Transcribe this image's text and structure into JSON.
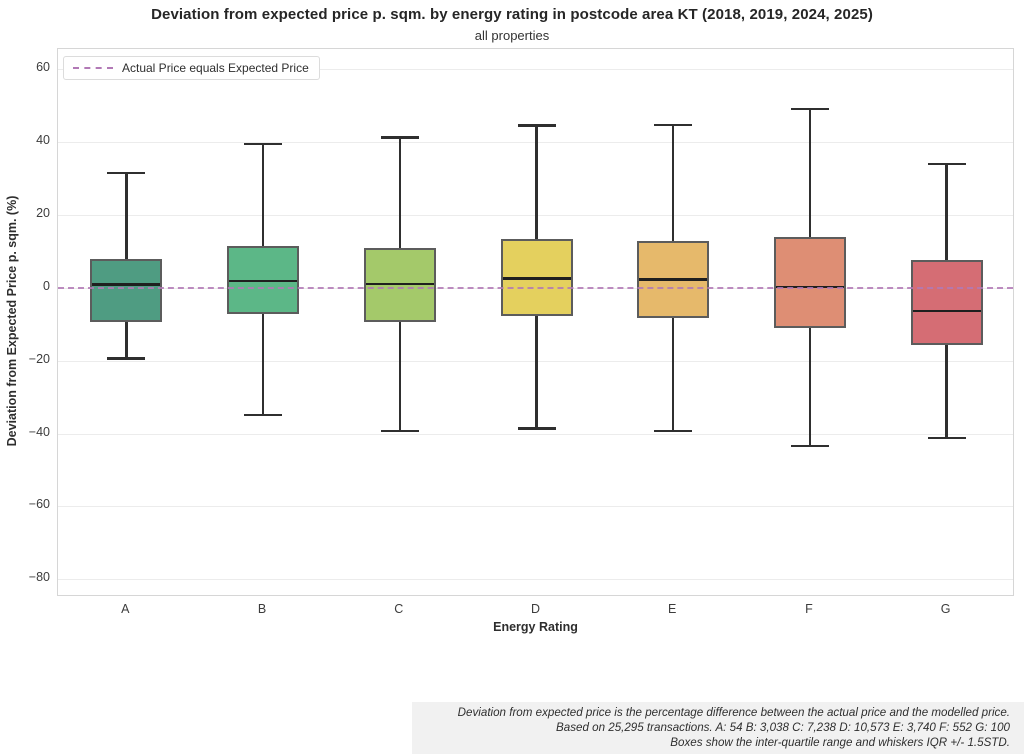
{
  "header": {
    "title": "Deviation from expected price p. sqm. by energy rating in postcode area KT (2018, 2019, 2024, 2025)",
    "subtitle": "all properties"
  },
  "legend": {
    "label": "Actual Price equals Expected Price",
    "line_color": "#b279b6",
    "line_style": "dashed"
  },
  "chart_data": {
    "type": "box",
    "title": "Deviation from expected price p. sqm. by energy rating in postcode area KT (2018, 2019, 2024, 2025)",
    "subtitle": "all properties",
    "xlabel": "Energy Rating",
    "ylabel": "Deviation from Expected Price p. sqm. (%)",
    "ylim": [
      -84.9,
      65.6
    ],
    "yticks": [
      60,
      40,
      20,
      0,
      -20,
      -40,
      -60,
      -80
    ],
    "grid": true,
    "legend_position": "upper left",
    "reference_line": {
      "value": 0,
      "label": "Actual Price equals Expected Price",
      "color": "#b279b6",
      "style": "dashed"
    },
    "categories": [
      "A",
      "B",
      "C",
      "D",
      "E",
      "F",
      "G"
    ],
    "series": [
      {
        "name": "A",
        "whisker_low": -19.3,
        "q1": -9.4,
        "median": 1.0,
        "q3": 7.9,
        "whisker_high": 31.6,
        "count": 54,
        "color": "#4f9c82"
      },
      {
        "name": "B",
        "whisker_low": -34.8,
        "q1": -7.1,
        "median": 1.9,
        "q3": 11.5,
        "whisker_high": 39.6,
        "count": 3038,
        "color": "#5cb787"
      },
      {
        "name": "C",
        "whisker_low": -39.2,
        "q1": -9.3,
        "median": 1.1,
        "q3": 11.0,
        "whisker_high": 41.3,
        "count": 7238,
        "color": "#a4c96a"
      },
      {
        "name": "D",
        "whisker_low": -38.5,
        "q1": -7.7,
        "median": 2.7,
        "q3": 13.4,
        "whisker_high": 44.6,
        "count": 10573,
        "color": "#e4d05e"
      },
      {
        "name": "E",
        "whisker_low": -39.3,
        "q1": -8.2,
        "median": 2.4,
        "q3": 13.0,
        "whisker_high": 44.8,
        "count": 3740,
        "color": "#e6b96b"
      },
      {
        "name": "F",
        "whisker_low": -43.3,
        "q1": -11.1,
        "median": 0.3,
        "q3": 13.9,
        "whisker_high": 49.2,
        "count": 552,
        "color": "#de8e74"
      },
      {
        "name": "G",
        "whisker_low": -41.2,
        "q1": -15.7,
        "median": -6.3,
        "q3": 7.7,
        "whisker_high": 34.1,
        "count": 100,
        "color": "#d56d74"
      }
    ],
    "total_transactions": 25295
  },
  "footnote": {
    "lines": [
      "Deviation from expected price is the percentage difference between the actual price and the modelled price.",
      "Based on 25,295 transactions. A: 54 B: 3,038 C: 7,238 D: 10,573 E: 3,740 F: 552 G: 100",
      "Boxes show the inter-quartile range and whiskers IQR +/- 1.5STD."
    ]
  }
}
